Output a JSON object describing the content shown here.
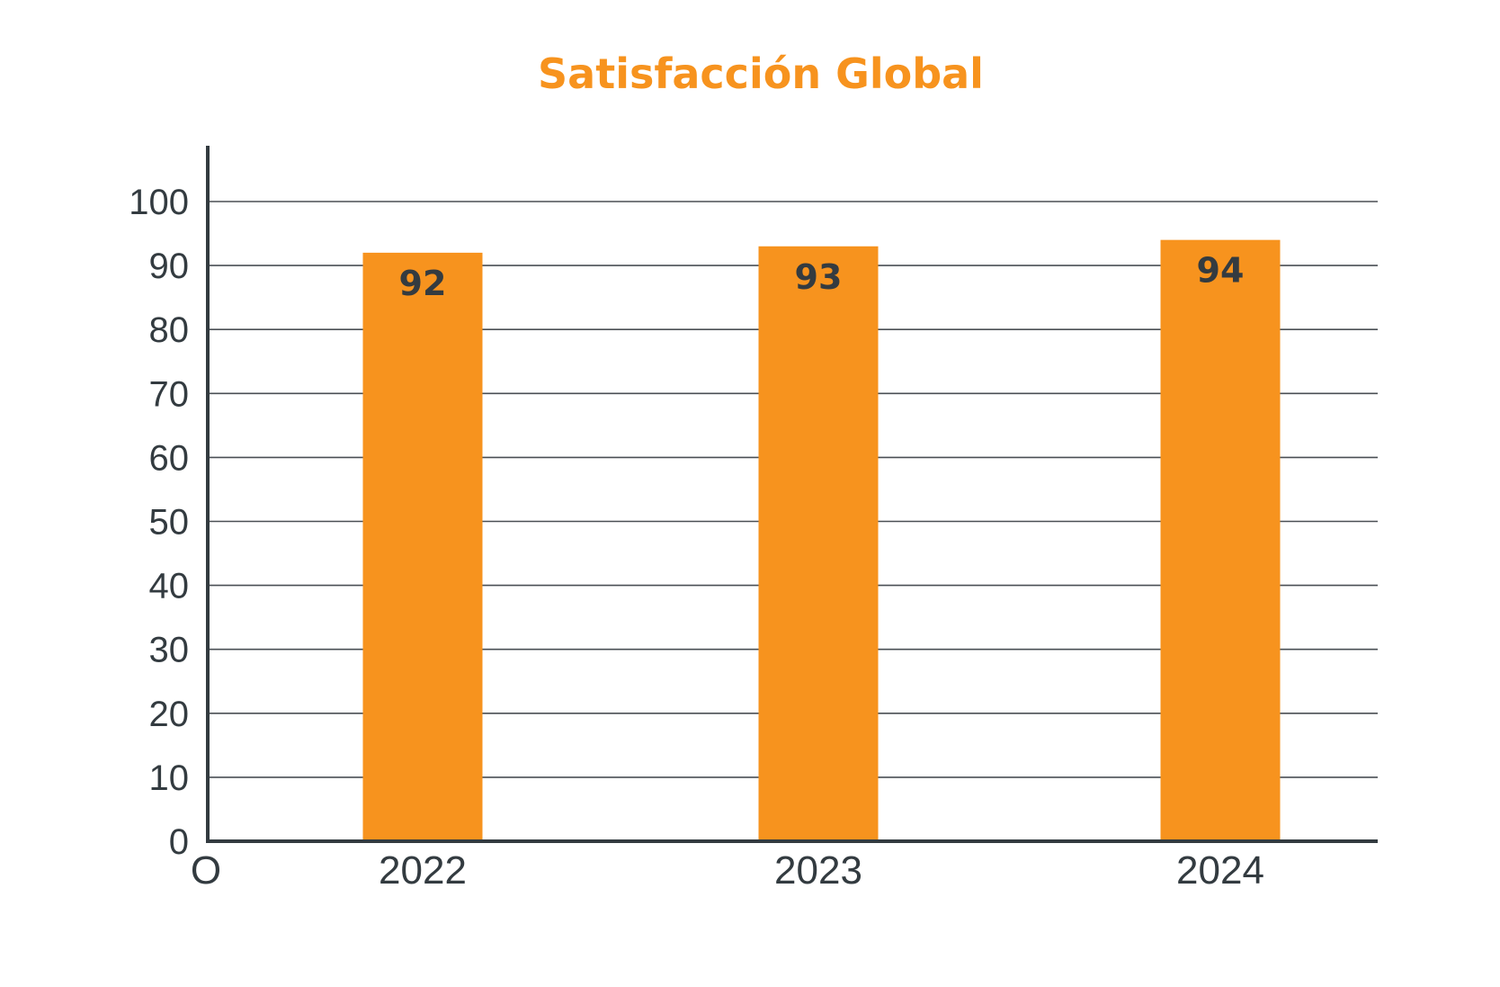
{
  "chart_data": {
    "type": "bar",
    "title": "Satisfacción Global",
    "categories": [
      "2022",
      "2023",
      "2024"
    ],
    "values": [
      92,
      93,
      94
    ],
    "data_labels": [
      "92",
      "93",
      "94"
    ],
    "y_ticks": [
      "0",
      "10",
      "20",
      "30",
      "40",
      "50",
      "60",
      "70",
      "80",
      "90",
      "100"
    ],
    "x_origin_label": "O",
    "xlabel": "",
    "ylabel": "",
    "ylim": [
      0,
      100
    ],
    "grid": true,
    "colors": {
      "bar": "#f7931e",
      "title": "#f7931e",
      "axis": "#333b40",
      "grid": "#4a4f54",
      "text": "#333b40"
    }
  }
}
